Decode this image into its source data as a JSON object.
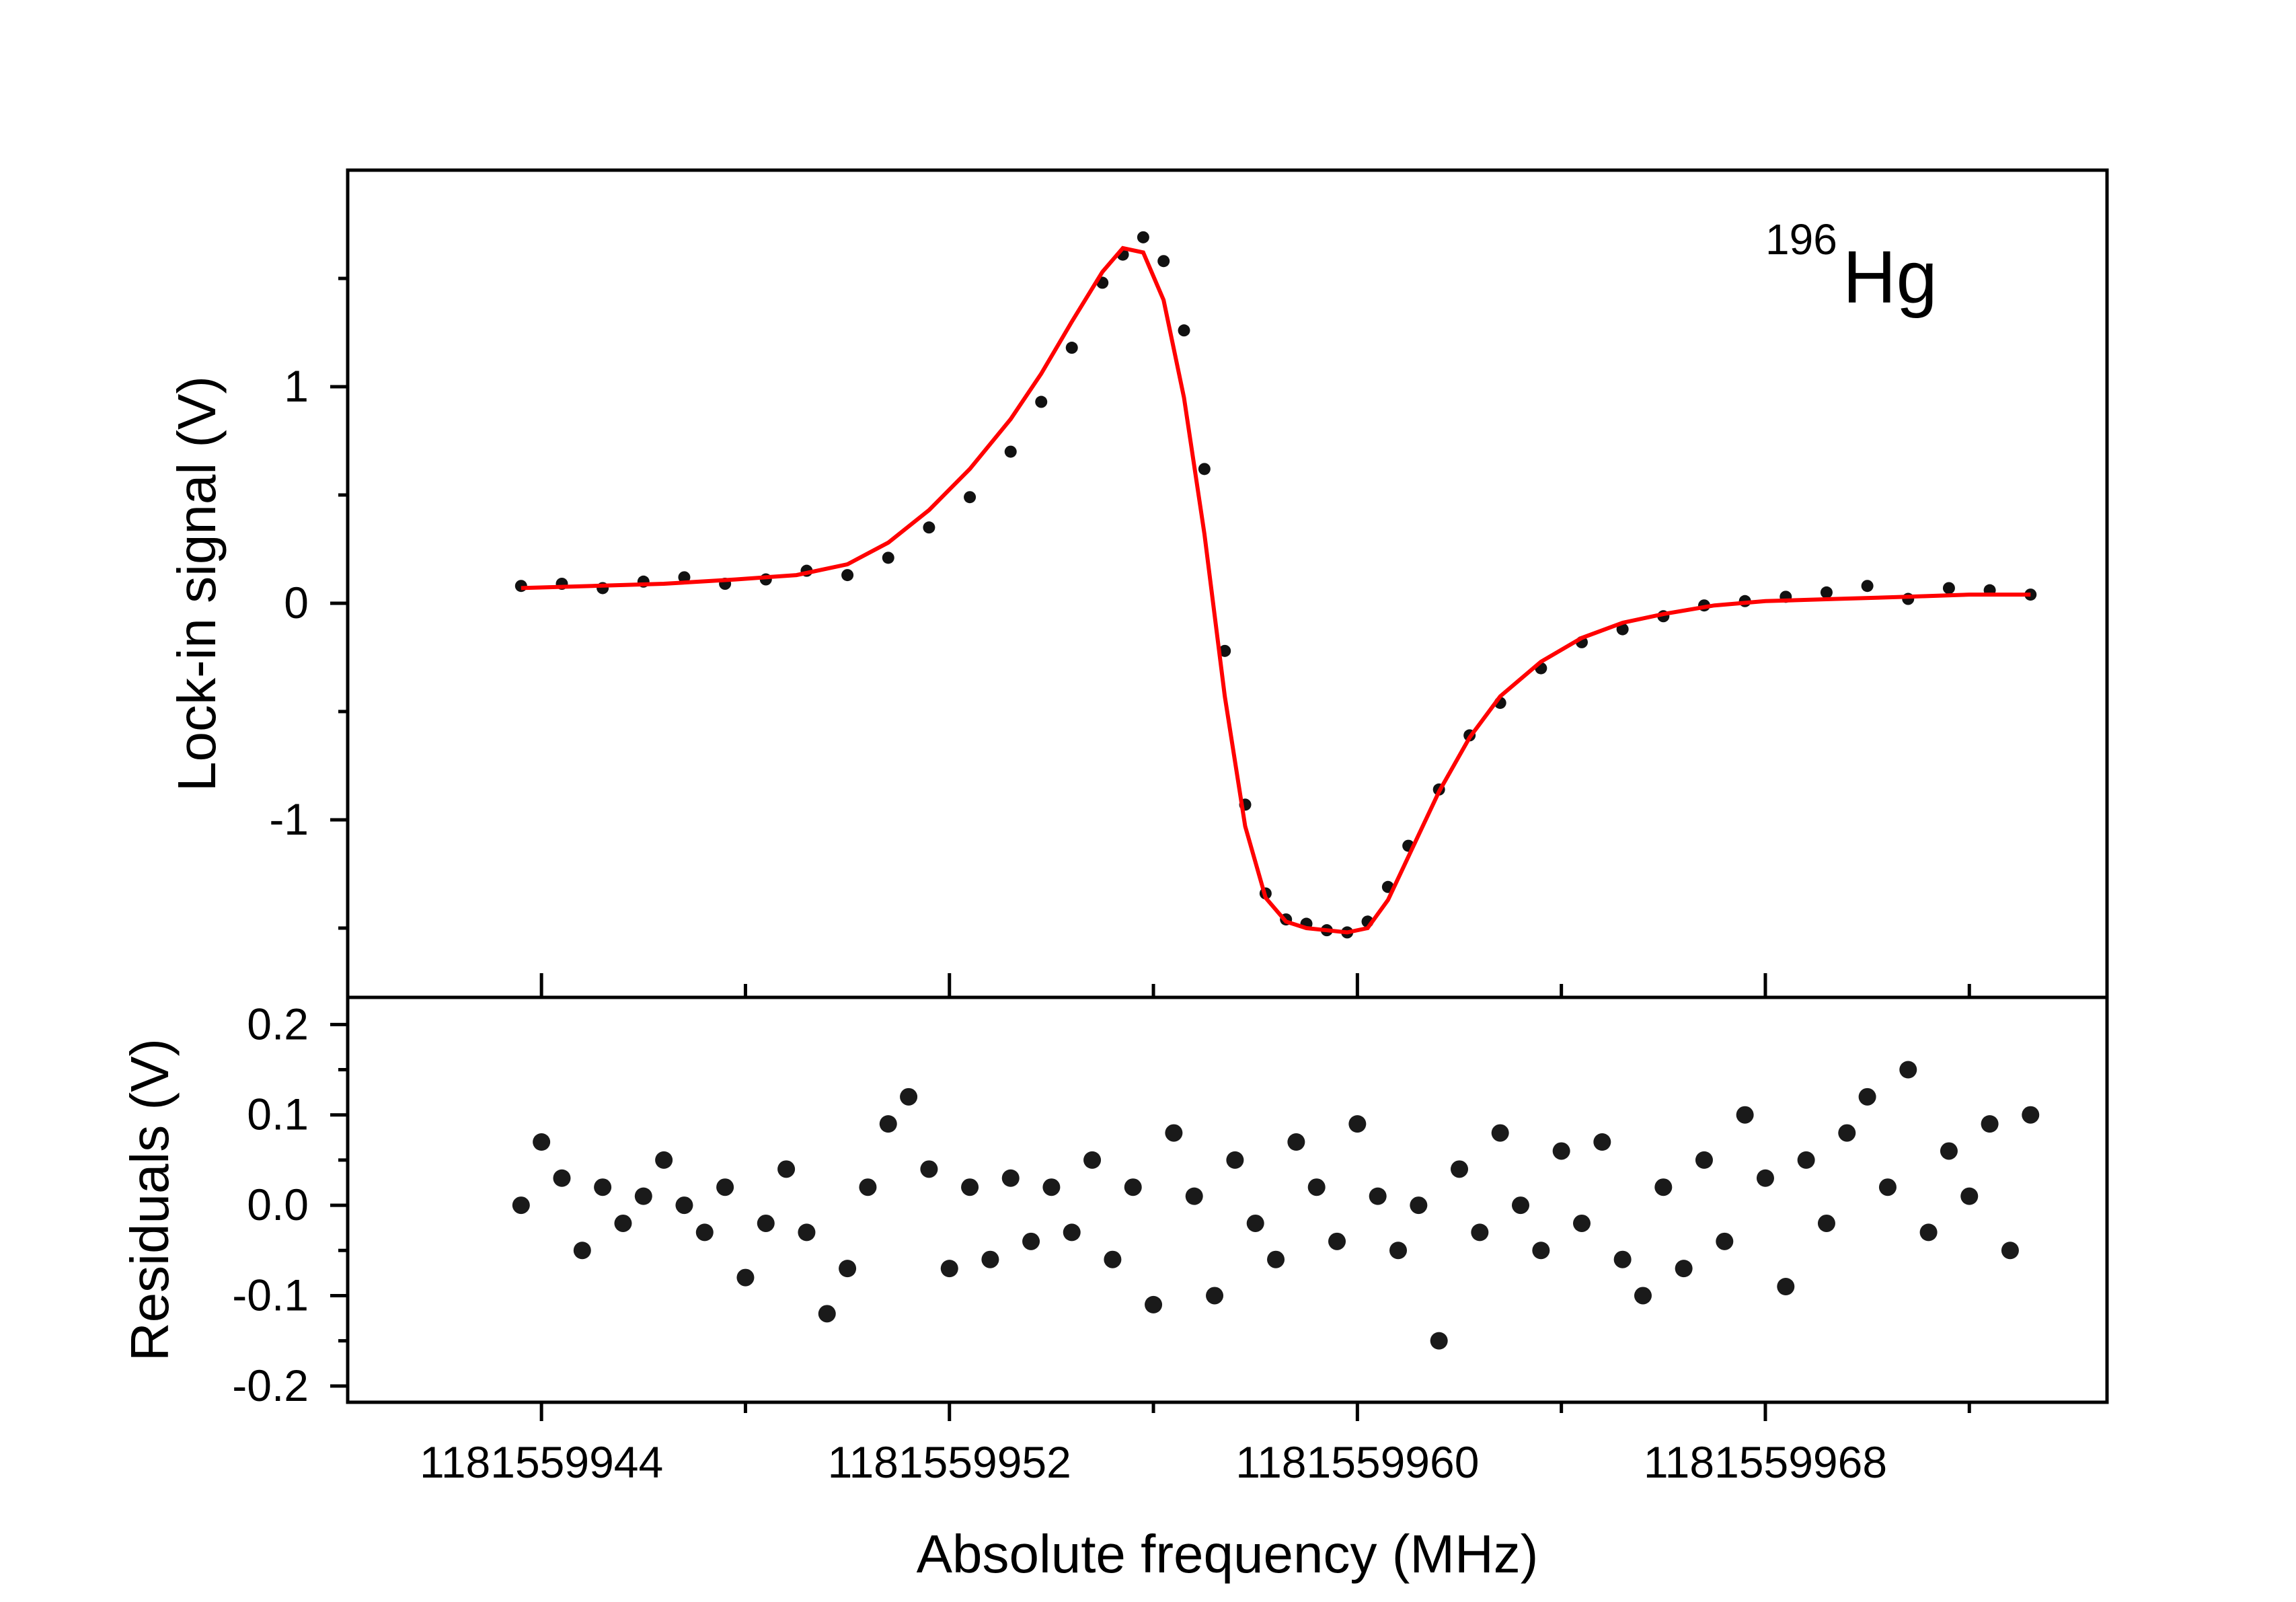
{
  "chart_data": [
    {
      "type": "line",
      "panel": "signal",
      "xlabel": "",
      "ylabel": "Lock-in signal (V)",
      "annotation": {
        "superscript": "196",
        "text": "Hg"
      },
      "xlim": [
        1181559940.2,
        1181559974.7
      ],
      "ylim": [
        -1.82,
        2.0
      ],
      "y_ticks": [
        1,
        0,
        -1
      ],
      "y_tick_labels": [
        "1",
        "0",
        "-1"
      ],
      "colors": {
        "fit": "#ff0000",
        "points": "#111111"
      },
      "series": [
        {
          "kind": "scatter",
          "x": [
            1181559943.6,
            1181559944.4,
            1181559945.2,
            1181559946.0,
            1181559946.8,
            1181559947.6,
            1181559948.4,
            1181559949.2,
            1181559950.0,
            1181559950.8,
            1181559951.6,
            1181559952.4,
            1181559953.2,
            1181559953.8,
            1181559954.4,
            1181559955.0,
            1181559955.4,
            1181559955.8,
            1181559956.2,
            1181559956.6,
            1181559957.0,
            1181559957.4,
            1181559957.8,
            1181559958.2,
            1181559958.6,
            1181559959.0,
            1181559959.4,
            1181559959.8,
            1181559960.2,
            1181559960.6,
            1181559961.0,
            1181559961.6,
            1181559962.2,
            1181559962.8,
            1181559963.6,
            1181559964.4,
            1181559965.2,
            1181559966.0,
            1181559966.8,
            1181559967.6,
            1181559968.4,
            1181559969.2,
            1181559970.0,
            1181559970.8,
            1181559971.6,
            1181559972.4,
            1181559973.2
          ],
          "y": [
            0.08,
            0.09,
            0.07,
            0.1,
            0.12,
            0.09,
            0.11,
            0.15,
            0.13,
            0.21,
            0.35,
            0.49,
            0.7,
            0.93,
            1.18,
            1.48,
            1.61,
            1.69,
            1.58,
            1.26,
            0.62,
            -0.22,
            -0.93,
            -1.34,
            -1.46,
            -1.48,
            -1.51,
            -1.52,
            -1.47,
            -1.31,
            -1.12,
            -0.86,
            -0.61,
            -0.46,
            -0.3,
            -0.18,
            -0.12,
            -0.06,
            -0.01,
            0.01,
            0.03,
            0.05,
            0.08,
            0.02,
            0.07,
            0.06,
            0.04
          ]
        },
        {
          "kind": "line",
          "x": [
            1181559943.6,
            1181559945.0,
            1181559946.4,
            1181559947.8,
            1181559949.0,
            1181559950.0,
            1181559950.8,
            1181559951.6,
            1181559952.4,
            1181559953.2,
            1181559953.8,
            1181559954.4,
            1181559955.0,
            1181559955.4,
            1181559955.8,
            1181559956.2,
            1181559956.6,
            1181559957.0,
            1181559957.4,
            1181559957.8,
            1181559958.2,
            1181559958.6,
            1181559959.0,
            1181559959.4,
            1181559959.8,
            1181559960.2,
            1181559960.6,
            1181559961.0,
            1181559961.6,
            1181559962.2,
            1181559962.8,
            1181559963.6,
            1181559964.4,
            1181559965.2,
            1181559966.0,
            1181559967.0,
            1181559968.0,
            1181559969.4,
            1181559970.8,
            1181559972.0,
            1181559973.2
          ],
          "y": [
            0.07,
            0.08,
            0.09,
            0.11,
            0.13,
            0.18,
            0.28,
            0.43,
            0.62,
            0.85,
            1.06,
            1.3,
            1.53,
            1.64,
            1.62,
            1.4,
            0.95,
            0.32,
            -0.43,
            -1.03,
            -1.36,
            -1.47,
            -1.5,
            -1.51,
            -1.52,
            -1.5,
            -1.37,
            -1.17,
            -0.87,
            -0.62,
            -0.43,
            -0.27,
            -0.16,
            -0.09,
            -0.05,
            -0.01,
            0.01,
            0.02,
            0.03,
            0.04,
            0.04
          ]
        }
      ]
    },
    {
      "type": "scatter",
      "panel": "residuals",
      "xlabel": "Absolute frequency (MHz)",
      "ylabel": "Residuals (V)",
      "xlim": [
        1181559940.2,
        1181559974.7
      ],
      "ylim": [
        -0.218,
        0.23
      ],
      "x_ticks": [
        1181559944,
        1181559952,
        1181559960,
        1181559968
      ],
      "x_tick_labels": [
        "1181559944",
        "1181559952",
        "1181559960",
        "1181559968"
      ],
      "y_ticks": [
        0.2,
        0.1,
        0.0,
        -0.1,
        -0.2
      ],
      "y_tick_labels": [
        "0.2",
        "0.1",
        "0.0",
        "-0.1",
        "-0.2"
      ],
      "series": [
        {
          "x": [
            1181559943.6,
            1181559944.0,
            1181559944.4,
            1181559944.8,
            1181559945.2,
            1181559945.6,
            1181559946.0,
            1181559946.4,
            1181559946.8,
            1181559947.2,
            1181559947.6,
            1181559948.0,
            1181559948.4,
            1181559948.8,
            1181559949.2,
            1181559949.6,
            1181559950.0,
            1181559950.4,
            1181559950.8,
            1181559951.2,
            1181559951.6,
            1181559952.0,
            1181559952.4,
            1181559952.8,
            1181559953.2,
            1181559953.6,
            1181559954.0,
            1181559954.4,
            1181559954.8,
            1181559955.2,
            1181559955.6,
            1181559956.0,
            1181559956.4,
            1181559956.8,
            1181559957.2,
            1181559957.6,
            1181559958.0,
            1181559958.4,
            1181559958.8,
            1181559959.2,
            1181559959.6,
            1181559960.0,
            1181559960.4,
            1181559960.8,
            1181559961.2,
            1181559961.6,
            1181559962.0,
            1181559962.4,
            1181559962.8,
            1181559963.2,
            1181559963.6,
            1181559964.0,
            1181559964.4,
            1181559964.8,
            1181559965.2,
            1181559965.6,
            1181559966.0,
            1181559966.4,
            1181559966.8,
            1181559967.2,
            1181559967.6,
            1181559968.0,
            1181559968.4,
            1181559968.8,
            1181559969.2,
            1181559969.6,
            1181559970.0,
            1181559970.4,
            1181559970.8,
            1181559971.2,
            1181559971.6,
            1181559972.0,
            1181559972.4,
            1181559972.8,
            1181559973.2
          ],
          "y": [
            0.0,
            0.07,
            0.03,
            -0.05,
            0.02,
            -0.02,
            0.01,
            0.05,
            0.0,
            -0.03,
            0.02,
            -0.08,
            -0.02,
            0.04,
            -0.03,
            -0.12,
            -0.07,
            0.02,
            0.09,
            0.12,
            0.04,
            -0.07,
            0.02,
            -0.06,
            0.03,
            -0.04,
            0.02,
            -0.03,
            0.05,
            -0.06,
            0.02,
            -0.11,
            0.08,
            0.01,
            -0.1,
            0.05,
            -0.02,
            -0.06,
            0.07,
            0.02,
            -0.04,
            0.09,
            0.01,
            -0.05,
            0.0,
            -0.15,
            0.04,
            -0.03,
            0.08,
            0.0,
            -0.05,
            0.06,
            -0.02,
            0.07,
            -0.06,
            -0.1,
            0.02,
            -0.07,
            0.05,
            -0.04,
            0.1,
            0.03,
            -0.09,
            0.05,
            -0.02,
            0.08,
            0.12,
            0.02,
            0.15,
            -0.03,
            0.06,
            0.01,
            0.09,
            -0.05,
            0.1
          ]
        }
      ]
    }
  ]
}
